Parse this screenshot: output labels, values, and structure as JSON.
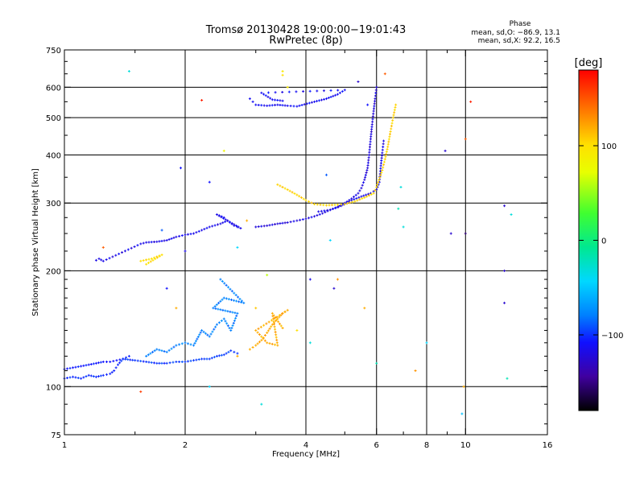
{
  "chart_data": {
    "type": "scatter",
    "title": "Tromsø 20130428 19:00:00−19:01:43",
    "subtitle": "RwPretec (8p)",
    "xlabel": "Frequency [MHz]",
    "ylabel": "Stationary phase Virtual Height [km]",
    "x_scale": "log",
    "y_scale": "log",
    "xlim": [
      1,
      16
    ],
    "ylim": [
      75,
      750
    ],
    "x_ticks": [
      1,
      2,
      4,
      6,
      8,
      10,
      16
    ],
    "x_tick_labels": [
      "1",
      "2",
      "4",
      "6",
      "8",
      "10",
      "16"
    ],
    "x_minor_ticks": [
      1.5,
      3,
      5,
      7,
      9
    ],
    "y_ticks": [
      75,
      100,
      200,
      300,
      400,
      500,
      600,
      750
    ],
    "y_tick_labels": [
      "75",
      "100",
      "200",
      "300",
      "400",
      "500",
      "600",
      "750"
    ],
    "x_gridlines": [
      2,
      4,
      6,
      8,
      10
    ],
    "y_gridlines": [
      100,
      200,
      300,
      400,
      500,
      600
    ],
    "phase_stats": {
      "title": "Phase",
      "line_o": "mean, sd,O: −86.9, 13.1",
      "line_x": "mean, sd,X:  92.2, 16.5"
    },
    "colorbar": {
      "label": "[deg]",
      "range": [
        -180,
        180
      ],
      "ticks": [
        100,
        0,
        -100
      ],
      "tick_labels": [
        "100",
        "0",
        "−100"
      ]
    },
    "traces": [
      {
        "phase": -95,
        "points": [
          [
            1.0,
            105
          ],
          [
            1.05,
            106
          ],
          [
            1.1,
            105
          ],
          [
            1.15,
            107
          ],
          [
            1.2,
            106
          ],
          [
            1.25,
            107
          ],
          [
            1.3,
            108
          ],
          [
            1.33,
            110
          ],
          [
            1.36,
            114
          ],
          [
            1.4,
            118
          ],
          [
            1.45,
            120
          ]
        ]
      },
      {
        "phase": -100,
        "points": [
          [
            1.0,
            111
          ],
          [
            1.05,
            112
          ],
          [
            1.1,
            113
          ],
          [
            1.15,
            114
          ],
          [
            1.2,
            115
          ],
          [
            1.25,
            116
          ],
          [
            1.3,
            116
          ],
          [
            1.35,
            117
          ],
          [
            1.4,
            118
          ]
        ]
      },
      {
        "phase": -90,
        "points": [
          [
            1.4,
            118
          ],
          [
            1.5,
            117
          ],
          [
            1.6,
            116
          ],
          [
            1.7,
            115
          ],
          [
            1.8,
            115
          ],
          [
            1.9,
            116
          ],
          [
            2.0,
            116
          ],
          [
            2.1,
            117
          ],
          [
            2.2,
            118
          ],
          [
            2.3,
            118
          ],
          [
            2.4,
            120
          ],
          [
            2.5,
            121
          ],
          [
            2.6,
            124
          ],
          [
            2.7,
            122
          ]
        ]
      },
      {
        "phase": -70,
        "points": [
          [
            1.6,
            120
          ],
          [
            1.7,
            125
          ],
          [
            1.8,
            123
          ],
          [
            1.9,
            128
          ],
          [
            2.0,
            130
          ],
          [
            2.1,
            128
          ],
          [
            2.2,
            140
          ],
          [
            2.3,
            135
          ],
          [
            2.4,
            145
          ],
          [
            2.5,
            150
          ],
          [
            2.6,
            140
          ],
          [
            2.7,
            155
          ],
          [
            2.35,
            160
          ],
          [
            2.5,
            170
          ],
          [
            2.8,
            165
          ],
          [
            2.45,
            190
          ]
        ]
      },
      {
        "phase": -110,
        "points": [
          [
            1.2,
            213
          ],
          [
            1.22,
            215
          ],
          [
            1.25,
            212
          ],
          [
            1.55,
            235
          ],
          [
            1.6,
            237
          ],
          [
            1.7,
            238
          ],
          [
            1.8,
            240
          ],
          [
            1.9,
            245
          ],
          [
            2.0,
            248
          ],
          [
            2.1,
            250
          ],
          [
            2.2,
            255
          ],
          [
            2.3,
            260
          ],
          [
            2.45,
            265
          ],
          [
            2.55,
            270
          ],
          [
            2.65,
            262
          ],
          [
            2.75,
            258
          ],
          [
            2.4,
            280
          ],
          [
            2.5,
            275
          ]
        ]
      },
      {
        "phase": -115,
        "points": [
          [
            3.0,
            260
          ],
          [
            3.2,
            262
          ],
          [
            3.4,
            265
          ],
          [
            3.6,
            267
          ],
          [
            3.8,
            270
          ],
          [
            4.0,
            273
          ],
          [
            4.2,
            277
          ],
          [
            4.4,
            282
          ],
          [
            4.6,
            288
          ],
          [
            4.8,
            293
          ],
          [
            5.0,
            300
          ],
          [
            5.2,
            308
          ],
          [
            5.4,
            318
          ],
          [
            5.5,
            328
          ],
          [
            5.6,
            345
          ],
          [
            5.7,
            370
          ],
          [
            5.75,
            400
          ],
          [
            5.8,
            440
          ],
          [
            5.85,
            480
          ],
          [
            5.9,
            520
          ],
          [
            5.95,
            560
          ],
          [
            6.0,
            600
          ]
        ]
      },
      {
        "phase": -110,
        "points": [
          [
            4.3,
            285
          ],
          [
            4.6,
            288
          ],
          [
            4.9,
            295
          ],
          [
            5.2,
            305
          ],
          [
            5.5,
            312
          ],
          [
            5.8,
            318
          ],
          [
            6.0,
            325
          ],
          [
            6.1,
            340
          ],
          [
            6.15,
            375
          ],
          [
            6.2,
            405
          ],
          [
            6.25,
            435
          ]
        ]
      },
      {
        "phase": -105,
        "points": [
          [
            2.9,
            560
          ],
          [
            2.95,
            550
          ],
          [
            3.0,
            540
          ],
          [
            3.2,
            537
          ],
          [
            3.4,
            540
          ],
          [
            3.6,
            537
          ],
          [
            3.8,
            535
          ],
          [
            4.2,
            550
          ],
          [
            4.5,
            560
          ],
          [
            4.8,
            575
          ],
          [
            5.0,
            590
          ],
          [
            3.1,
            580
          ],
          [
            3.3,
            557
          ],
          [
            3.5,
            553
          ]
        ]
      },
      {
        "phase": 105,
        "points": [
          [
            3.4,
            335
          ],
          [
            3.6,
            325
          ],
          [
            3.8,
            315
          ],
          [
            4.0,
            305
          ],
          [
            4.2,
            298
          ],
          [
            4.5,
            296
          ],
          [
            4.8,
            297
          ],
          [
            5.0,
            298
          ],
          [
            5.3,
            303
          ],
          [
            5.6,
            310
          ],
          [
            5.9,
            318
          ],
          [
            6.0,
            330
          ],
          [
            6.2,
            365
          ],
          [
            6.3,
            390
          ],
          [
            6.4,
            420
          ],
          [
            6.5,
            460
          ],
          [
            6.6,
            500
          ],
          [
            6.7,
            540
          ]
        ]
      },
      {
        "phase": 120,
        "points": [
          [
            2.9,
            125
          ],
          [
            3.0,
            128
          ],
          [
            3.1,
            132
          ],
          [
            3.2,
            138
          ],
          [
            3.3,
            145
          ],
          [
            3.4,
            150
          ],
          [
            3.5,
            155
          ],
          [
            3.6,
            158
          ],
          [
            3.0,
            140
          ],
          [
            3.2,
            130
          ],
          [
            3.4,
            128
          ],
          [
            3.3,
            155
          ],
          [
            3.5,
            142
          ]
        ]
      },
      {
        "phase": 100,
        "points": [
          [
            1.55,
            212
          ],
          [
            1.65,
            215
          ],
          [
            1.75,
            220
          ],
          [
            1.6,
            208
          ]
        ]
      }
    ],
    "scatter_points": [
      [
        1.45,
        660,
        -20
      ],
      [
        1.95,
        370,
        -100
      ],
      [
        2.2,
        555,
        170
      ],
      [
        2.5,
        410,
        80
      ],
      [
        2.7,
        230,
        -30
      ],
      [
        2.85,
        270,
        120
      ],
      [
        3.0,
        160,
        110
      ],
      [
        3.2,
        195,
        60
      ],
      [
        3.5,
        660,
        90
      ],
      [
        3.6,
        600,
        90
      ],
      [
        4.5,
        355,
        -80
      ],
      [
        4.6,
        240,
        -30
      ],
      [
        4.7,
        180,
        -120
      ],
      [
        4.8,
        190,
        130
      ],
      [
        5.4,
        620,
        -120
      ],
      [
        5.6,
        160,
        120
      ],
      [
        6.0,
        115,
        -10
      ],
      [
        6.8,
        290,
        -10
      ],
      [
        7.0,
        260,
        -20
      ],
      [
        6.9,
        330,
        -20
      ],
      [
        7.5,
        110,
        130
      ],
      [
        8.0,
        130,
        -30
      ],
      [
        8.9,
        410,
        -120
      ],
      [
        9.2,
        250,
        -120
      ],
      [
        9.8,
        85,
        -40
      ],
      [
        9.9,
        100,
        120
      ],
      [
        10.0,
        250,
        -150
      ],
      [
        10.0,
        440,
        150
      ],
      [
        10.3,
        550,
        170
      ],
      [
        12.5,
        295,
        -120
      ],
      [
        12.5,
        200,
        -120
      ],
      [
        12.5,
        165,
        -120
      ],
      [
        12.7,
        105,
        -10
      ],
      [
        13.0,
        280,
        -20
      ],
      [
        1.9,
        160,
        120
      ],
      [
        2.3,
        100,
        -30
      ],
      [
        1.8,
        180,
        -100
      ],
      [
        1.25,
        230,
        150
      ],
      [
        1.55,
        97,
        160
      ],
      [
        1.75,
        255,
        -80
      ],
      [
        2.0,
        225,
        -110
      ],
      [
        2.7,
        120,
        120
      ],
      [
        3.1,
        90,
        -20
      ],
      [
        3.8,
        140,
        100
      ],
      [
        4.1,
        130,
        -20
      ],
      [
        6.3,
        650,
        150
      ],
      [
        5.7,
        540,
        -100
      ],
      [
        3.5,
        645,
        100
      ],
      [
        2.3,
        340,
        -100
      ],
      [
        4.1,
        190,
        -110
      ]
    ]
  }
}
